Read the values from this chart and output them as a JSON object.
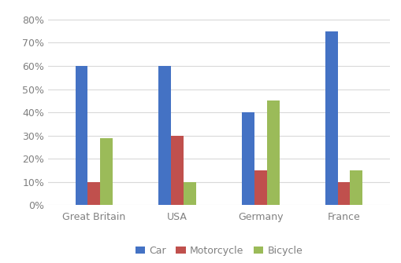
{
  "categories": [
    "Great Britain",
    "USA",
    "Germany",
    "France"
  ],
  "series": {
    "Car": [
      0.6,
      0.6,
      0.4,
      0.75
    ],
    "Motorcycle": [
      0.1,
      0.3,
      0.15,
      0.1
    ],
    "Bicycle": [
      0.29,
      0.1,
      0.45,
      0.15
    ]
  },
  "colors": {
    "Car": "#4472C4",
    "Motorcycle": "#C0504D",
    "Bicycle": "#9BBB59"
  },
  "ylim": [
    0,
    0.85
  ],
  "yticks": [
    0.0,
    0.1,
    0.2,
    0.3,
    0.4,
    0.5,
    0.6,
    0.7,
    0.8
  ],
  "bar_width": 0.15,
  "legend_labels": [
    "Car",
    "Motorcycle",
    "Bicycle"
  ],
  "background_color": "#FFFFFF",
  "grid_color": "#D9D9D9",
  "tick_color": "#808080",
  "tick_fontsize": 9,
  "legend_fontsize": 9
}
